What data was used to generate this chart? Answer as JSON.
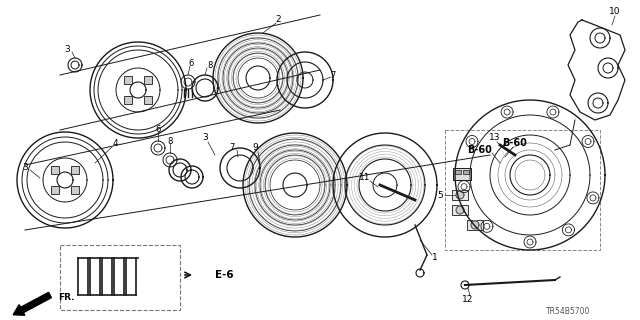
{
  "figsize": [
    6.4,
    3.2
  ],
  "dpi": 100,
  "background_color": "#ffffff",
  "line_color": "#1a1a1a",
  "text_color": "#000000",
  "part_code": "TR54B5700",
  "B60_text": "B-60",
  "E6_text": "E-6",
  "FR_text": "FR.",
  "grey_line": "#888888",
  "mid_grey": "#666666"
}
